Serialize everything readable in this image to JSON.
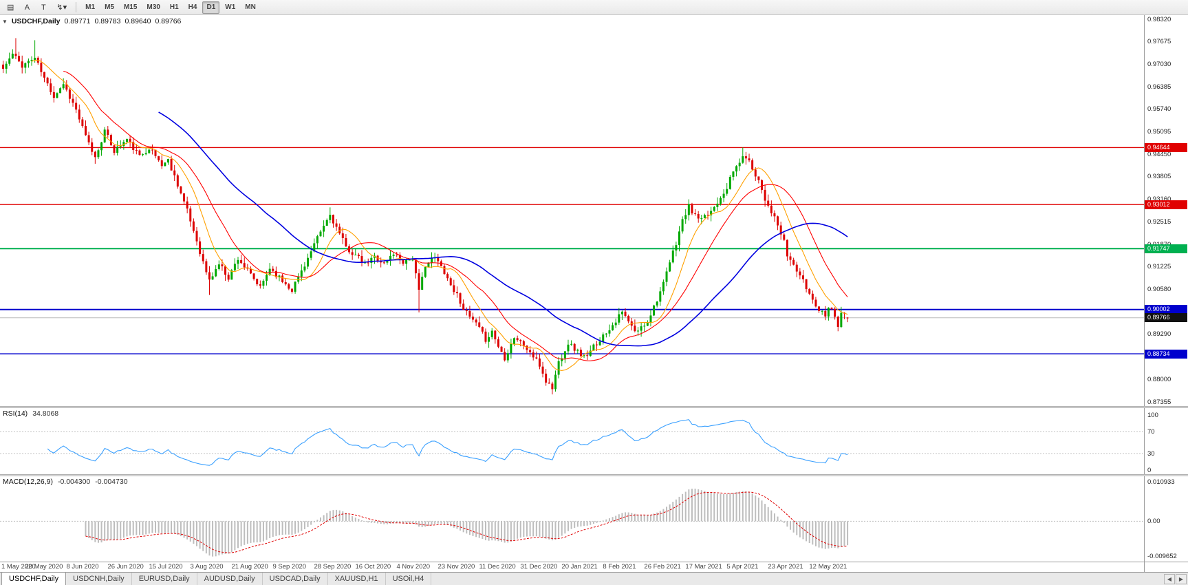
{
  "toolbar": {
    "icons": [
      {
        "name": "chart-window-icon",
        "glyph": "▤"
      },
      {
        "name": "cursor-tool-icon",
        "glyph": "A"
      },
      {
        "name": "text-tool-icon",
        "glyph": "T"
      },
      {
        "name": "line-studies-icon",
        "glyph": "↯▾"
      }
    ],
    "timeframes": [
      "M1",
      "M5",
      "M15",
      "M30",
      "H1",
      "H4",
      "D1",
      "W1",
      "MN"
    ],
    "active_timeframe": "D1"
  },
  "chart": {
    "collapse_glyph": "▼",
    "title": "USDCHF,Daily",
    "open": "0.89771",
    "high": "0.89783",
    "low": "0.89640",
    "close": "0.89766"
  },
  "rsi": {
    "name": "RSI(14)",
    "value": "34.8068"
  },
  "macd": {
    "name": "MACD(12,26,9)",
    "value": "-0.004300",
    "signal": "-0.004730"
  },
  "time_axis": [
    "1 May 2020",
    "20 May 2020",
    "8 Jun 2020",
    "26 Jun 2020",
    "15 Jul 2020",
    "3 Aug 2020",
    "21 Aug 2020",
    "9 Sep 2020",
    "28 Sep 2020",
    "16 Oct 2020",
    "4 Nov 2020",
    "23 Nov 2020",
    "11 Dec 2020",
    "31 Dec 2020",
    "20 Jan 2021",
    "8 Feb 2021",
    "26 Feb 2021",
    "17 Mar 2021",
    "5 Apr 2021",
    "23 Apr 2021",
    "12 May 2021"
  ],
  "tab_bar": {
    "tabs": [
      "USDCHF,Daily",
      "USDCNH,Daily",
      "EURUSD,Daily",
      "AUDUSD,Daily",
      "USDCAD,Daily",
      "XAUUSD,H1",
      "USOil,H4"
    ],
    "active": "USDCHF,Daily",
    "scroll_left_glyph": "◀",
    "scroll_right_glyph": "▶"
  },
  "chart_data": {
    "type": "candlestick",
    "symbol": "USDCHF",
    "period": "Daily",
    "bg_color": "#ffffff",
    "up_color": "#00a800",
    "down_color": "#dc0000",
    "last_ohlc": {
      "open": 0.89771,
      "high": 0.89783,
      "low": 0.8964,
      "close": 0.89766
    },
    "y_axis": {
      "min": 0.87355,
      "max": 0.9832,
      "tick_step": 0.00645,
      "ticks": [
        "0.98320",
        "0.97675",
        "0.97030",
        "0.96385",
        "0.95740",
        "0.95095",
        "0.94450",
        "0.93805",
        "0.93160",
        "0.92515",
        "0.91870",
        "0.91225",
        "0.90580",
        "0.89935",
        "0.89290",
        "0.88645",
        "0.88000",
        "0.87355"
      ]
    },
    "candles_count": 267,
    "candles_per_tick": 13,
    "noise": 0.0016,
    "wick": 0.0018,
    "price_path": [
      [
        0,
        0.969
      ],
      [
        3,
        0.9732
      ],
      [
        6,
        0.97
      ],
      [
        10,
        0.9722
      ],
      [
        13,
        0.9662
      ],
      [
        16,
        0.9612
      ],
      [
        19,
        0.9648
      ],
      [
        23,
        0.9572
      ],
      [
        26,
        0.9495
      ],
      [
        29,
        0.9435
      ],
      [
        32,
        0.9512
      ],
      [
        35,
        0.9455
      ],
      [
        39,
        0.9488
      ],
      [
        43,
        0.9438
      ],
      [
        46,
        0.9465
      ],
      [
        50,
        0.9415
      ],
      [
        52,
        0.9428
      ],
      [
        55,
        0.936
      ],
      [
        58,
        0.9282
      ],
      [
        61,
        0.9198
      ],
      [
        63,
        0.9135
      ],
      [
        65,
        0.9082
      ],
      [
        68,
        0.9132
      ],
      [
        71,
        0.9092
      ],
      [
        74,
        0.9148
      ],
      [
        78,
        0.9098
      ],
      [
        81,
        0.9062
      ],
      [
        84,
        0.912
      ],
      [
        88,
        0.9082
      ],
      [
        91,
        0.9058
      ],
      [
        94,
        0.9112
      ],
      [
        97,
        0.9165
      ],
      [
        100,
        0.9222
      ],
      [
        103,
        0.9272
      ],
      [
        105,
        0.9235
      ],
      [
        108,
        0.9178
      ],
      [
        111,
        0.9155
      ],
      [
        114,
        0.9128
      ],
      [
        117,
        0.9152
      ],
      [
        120,
        0.9132
      ],
      [
        123,
        0.9162
      ],
      [
        126,
        0.9138
      ],
      [
        129,
        0.9148
      ],
      [
        131,
        0.905
      ],
      [
        133,
        0.913
      ],
      [
        136,
        0.9148
      ],
      [
        139,
        0.911
      ],
      [
        141,
        0.907
      ],
      [
        143,
        0.9042
      ],
      [
        146,
        0.8988
      ],
      [
        149,
        0.8958
      ],
      [
        152,
        0.8915
      ],
      [
        154,
        0.8938
      ],
      [
        156,
        0.8895
      ],
      [
        158,
        0.8862
      ],
      [
        161,
        0.8922
      ],
      [
        164,
        0.8898
      ],
      [
        167,
        0.8865
      ],
      [
        169,
        0.884
      ],
      [
        171,
        0.8795
      ],
      [
        173,
        0.8775
      ],
      [
        175,
        0.885
      ],
      [
        178,
        0.8905
      ],
      [
        180,
        0.8888
      ],
      [
        182,
        0.8872
      ],
      [
        184,
        0.8862
      ],
      [
        186,
        0.8895
      ],
      [
        189,
        0.8925
      ],
      [
        192,
        0.8958
      ],
      [
        195,
        0.8992
      ],
      [
        197,
        0.8965
      ],
      [
        199,
        0.8935
      ],
      [
        201,
        0.8948
      ],
      [
        203,
        0.8968
      ],
      [
        205,
        0.901
      ],
      [
        208,
        0.9072
      ],
      [
        210,
        0.9135
      ],
      [
        212,
        0.9192
      ],
      [
        214,
        0.9255
      ],
      [
        216,
        0.9295
      ],
      [
        218,
        0.9268
      ],
      [
        220,
        0.9255
      ],
      [
        222,
        0.9272
      ],
      [
        224,
        0.9295
      ],
      [
        226,
        0.9325
      ],
      [
        228,
        0.9352
      ],
      [
        230,
        0.9395
      ],
      [
        232,
        0.9425
      ],
      [
        234,
        0.944
      ],
      [
        236,
        0.9405
      ],
      [
        238,
        0.9372
      ],
      [
        240,
        0.9318
      ],
      [
        242,
        0.9282
      ],
      [
        244,
        0.924
      ],
      [
        246,
        0.9192
      ],
      [
        247,
        0.9155
      ],
      [
        249,
        0.9128
      ],
      [
        251,
        0.9098
      ],
      [
        253,
        0.9062
      ],
      [
        255,
        0.903
      ],
      [
        257,
        0.9
      ],
      [
        259,
        0.8988
      ],
      [
        260,
        0.9012
      ],
      [
        262,
        0.8985
      ],
      [
        263,
        0.8955
      ],
      [
        264,
        0.8992
      ],
      [
        266,
        0.89766
      ]
    ],
    "spike_highs": [
      [
        4,
        0.9778
      ],
      [
        10,
        0.9772
      ],
      [
        103,
        0.9293
      ],
      [
        216,
        0.9308
      ],
      [
        233,
        0.94644
      ]
    ],
    "spike_lows": [
      [
        29,
        0.9418
      ],
      [
        65,
        0.9042
      ],
      [
        91,
        0.9046
      ],
      [
        131,
        0.8992
      ],
      [
        171,
        0.8802
      ],
      [
        173,
        0.8757
      ],
      [
        263,
        0.8938
      ]
    ],
    "levels": [
      {
        "value": 0.94644,
        "label": "0.94644",
        "color": "#e00000",
        "width": 1.4
      },
      {
        "value": 0.93012,
        "label": "0.93012",
        "color": "#e00000",
        "width": 1.4
      },
      {
        "value": 0.91747,
        "label": "0.91747",
        "color": "#00b050",
        "width": 2
      },
      {
        "value": 0.90002,
        "label": "0.90002",
        "color": "#0000cd",
        "width": 2
      },
      {
        "value": 0.88734,
        "label": "0.88734",
        "color": "#0000cd",
        "width": 1.4
      }
    ],
    "current_price": {
      "value": 0.89766,
      "label": "0.89766",
      "color": "#111111"
    },
    "moving_averages": [
      {
        "period": 10,
        "color": "#ffa000"
      },
      {
        "period": 20,
        "color": "#ff0000"
      },
      {
        "period": 50,
        "color": "#0000e0"
      }
    ],
    "rsi": {
      "period": 14,
      "value": 34.8068,
      "color": "#3aa0ff",
      "levels": [
        70,
        30
      ],
      "range": [
        0,
        100
      ],
      "ticks": [
        {
          "v": 100,
          "label": "100"
        },
        {
          "v": 70,
          "label": "70"
        },
        {
          "v": 30,
          "label": "30"
        },
        {
          "v": 0,
          "label": "0"
        }
      ]
    },
    "macd": {
      "fast": 12,
      "slow": 26,
      "signal_period": 9,
      "value": -0.0043,
      "signal_value": -0.00473,
      "range": [
        -0.009652,
        0.010933
      ],
      "hist_color": "#bdbdbd",
      "signal_color": "#e00000",
      "ticks": [
        {
          "v": 0.010933,
          "label": "0.010933"
        },
        {
          "v": 0,
          "label": "0.00"
        },
        {
          "v": -0.009652,
          "label": "-0.009652"
        }
      ]
    },
    "x_ticks": [
      "1 May 2020",
      "20 May 2020",
      "8 Jun 2020",
      "26 Jun 2020",
      "15 Jul 2020",
      "3 Aug 2020",
      "21 Aug 2020",
      "9 Sep 2020",
      "28 Sep 2020",
      "16 Oct 2020",
      "4 Nov 2020",
      "23 Nov 2020",
      "11 Dec 2020",
      "31 Dec 2020",
      "20 Jan 2021",
      "8 Feb 2021",
      "26 Feb 2021",
      "17 Mar 2021",
      "5 Apr 2021",
      "23 Apr 2021",
      "12 May 2021"
    ]
  }
}
